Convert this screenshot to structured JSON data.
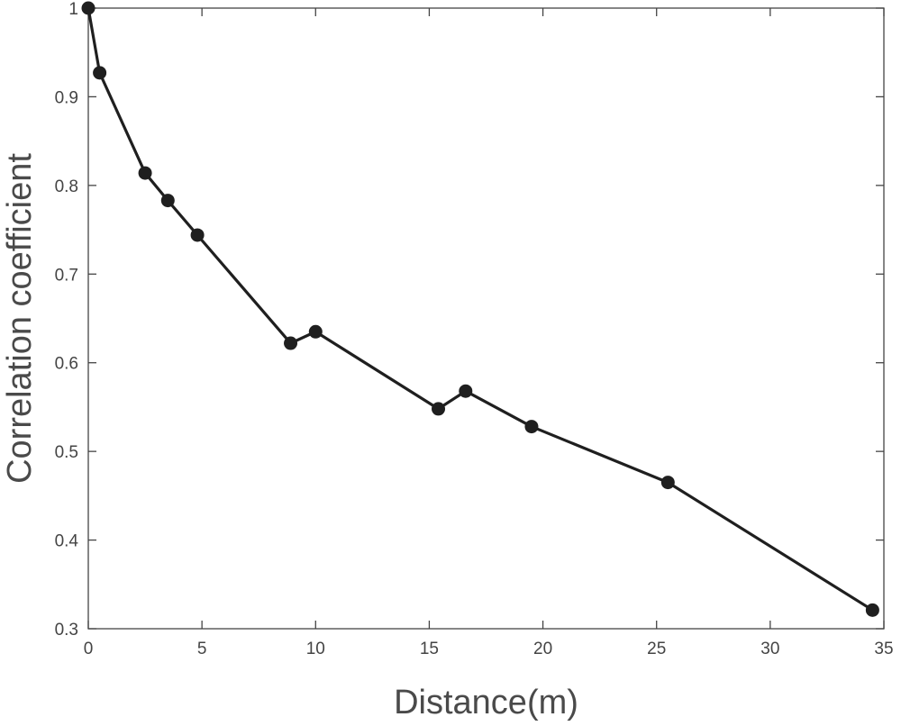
{
  "chart_data": {
    "type": "line",
    "title": "",
    "xlabel": "Distance(m)",
    "ylabel": "Correlation coefficient",
    "xlim": [
      0,
      35
    ],
    "ylim": [
      0.3,
      1
    ],
    "xticks": [
      0,
      5,
      10,
      15,
      20,
      25,
      30,
      35
    ],
    "yticks": [
      0.3,
      0.4,
      0.5,
      0.6,
      0.7,
      0.8,
      0.9,
      1.0
    ],
    "xtick_labels": [
      "0",
      "5",
      "10",
      "15",
      "20",
      "25",
      "30",
      "35"
    ],
    "ytick_labels": [
      "0.3",
      "0.4",
      "0.5",
      "0.6",
      "0.7",
      "0.8",
      "0.9",
      "1"
    ],
    "grid": false,
    "legend": "none",
    "series": [
      {
        "color": "#1f1f1f",
        "marker": "filled-circle",
        "x": [
          0.0,
          0.5,
          2.5,
          3.5,
          4.8,
          8.9,
          10.0,
          15.4,
          16.6,
          19.5,
          25.5,
          34.5
        ],
        "y": [
          1.0,
          0.927,
          0.814,
          0.783,
          0.744,
          0.622,
          0.635,
          0.548,
          0.568,
          0.528,
          0.465,
          0.321
        ]
      }
    ]
  }
}
